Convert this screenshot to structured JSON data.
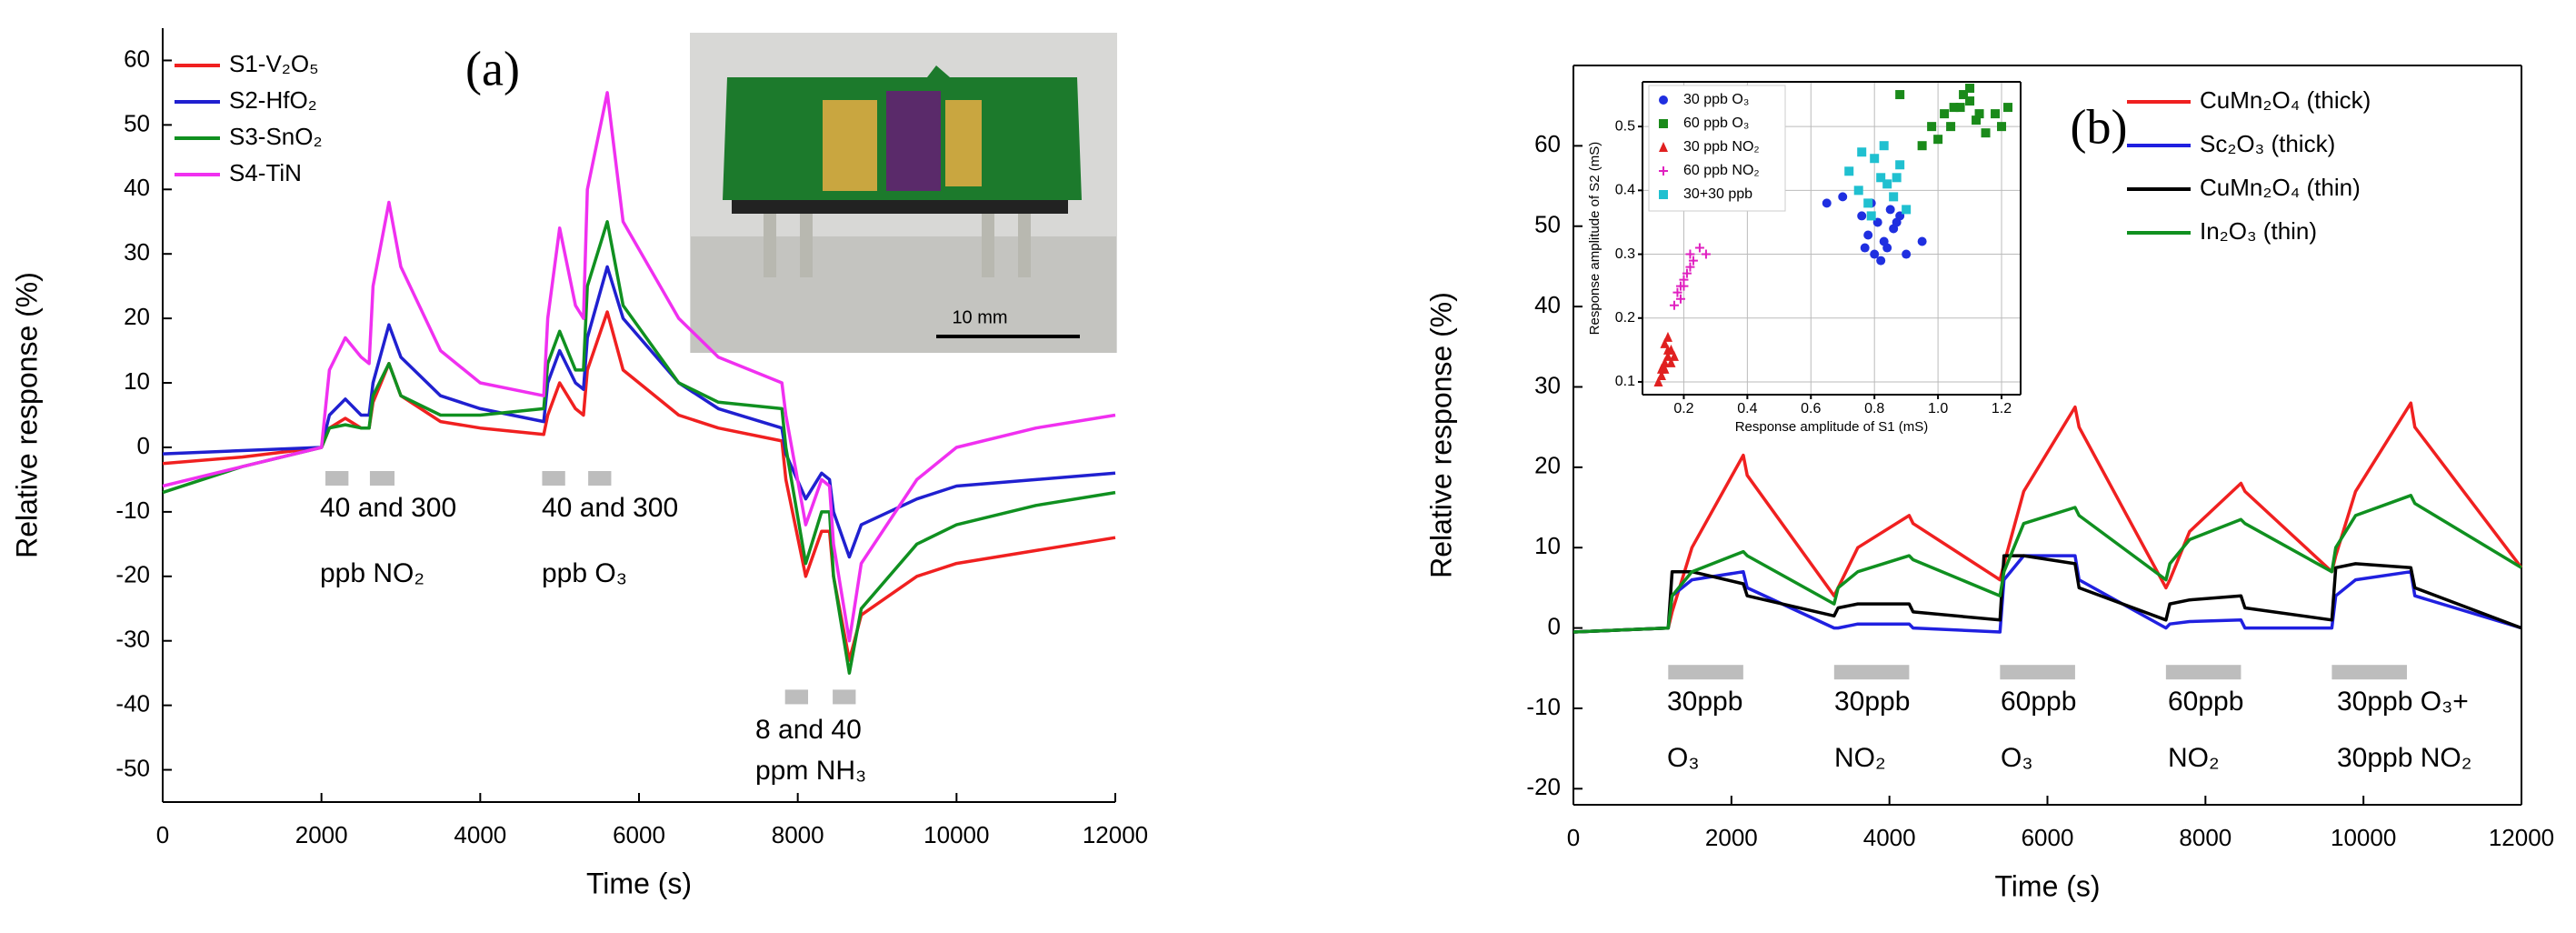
{
  "chart_data": [
    {
      "type": "line",
      "panel_label": "(a)",
      "x_label": "Time (s)",
      "y_label": "Relative response (%)",
      "xlim": [
        0,
        12000
      ],
      "xticks": [
        0,
        2000,
        4000,
        6000,
        8000,
        10000,
        12000
      ],
      "ylim": [
        -55,
        65
      ],
      "yticks": [
        -50,
        -40,
        -30,
        -20,
        -10,
        0,
        10,
        20,
        30,
        40,
        50,
        60
      ],
      "x": [
        0,
        1000,
        2000,
        2100,
        2300,
        2500,
        2600,
        2650,
        2850,
        3000,
        3500,
        4000,
        4800,
        4850,
        5000,
        5200,
        5300,
        5350,
        5600,
        5800,
        6500,
        7000,
        7800,
        7850,
        8100,
        8300,
        8400,
        8450,
        8650,
        8800,
        9500,
        10000,
        11000,
        12000
      ],
      "series": [
        {
          "name": "S1-V₂O₅",
          "color": "#f02020",
          "values": [
            -2.5,
            -1.5,
            0,
            3,
            4.5,
            3,
            3,
            7,
            13,
            8,
            4,
            3,
            2,
            5,
            10,
            6,
            5,
            12,
            21,
            12,
            5,
            3,
            1,
            -5,
            -20,
            -13,
            -13,
            -20,
            -33,
            -26,
            -20,
            -18,
            -16,
            -14
          ]
        },
        {
          "name": "S2-HfO₂",
          "color": "#2020d0",
          "values": [
            -1,
            -0.5,
            0,
            5,
            7.5,
            5,
            5,
            10,
            19,
            14,
            8,
            6,
            4,
            10,
            15,
            10,
            9,
            17,
            28,
            20,
            10,
            6,
            3,
            -1,
            -8,
            -4,
            -5,
            -10,
            -17,
            -12,
            -8,
            -6,
            -5,
            -4
          ]
        },
        {
          "name": "S3-SnO₂",
          "color": "#109020",
          "values": [
            -7,
            -3,
            0,
            3,
            3.5,
            3,
            3,
            8,
            13,
            8,
            5,
            5,
            6,
            13,
            18,
            12,
            12,
            25,
            35,
            22,
            10,
            7,
            6,
            0,
            -18,
            -10,
            -10,
            -20,
            -35,
            -25,
            -15,
            -12,
            -9,
            -7
          ]
        },
        {
          "name": "S4-TiN",
          "color": "#f030f0",
          "values": [
            -6,
            -3,
            0,
            12,
            17,
            14,
            13,
            25,
            38,
            28,
            15,
            10,
            8,
            20,
            34,
            22,
            20,
            40,
            55,
            35,
            20,
            14,
            10,
            5,
            -12,
            -5,
            -6,
            -15,
            -30,
            -18,
            -5,
            0,
            3,
            5
          ]
        }
      ],
      "exposures": [
        {
          "x0": 2050,
          "x1": 2340,
          "y": -4.8
        },
        {
          "x0": 2610,
          "x1": 2920,
          "y": -4.8
        },
        {
          "x0": 4780,
          "x1": 5070,
          "y": -4.8
        },
        {
          "x0": 5360,
          "x1": 5650,
          "y": -4.8
        },
        {
          "x0": 7840,
          "x1": 8130,
          "y": -38.7
        },
        {
          "x0": 8440,
          "x1": 8730,
          "y": -38.7
        }
      ],
      "annotations": [
        [
          "40 and 300",
          "ppb NO₂"
        ],
        [
          "40 and 300",
          "ppb O₃"
        ],
        [
          "8 and 40",
          "ppm NH₃"
        ]
      ]
    },
    {
      "type": "line",
      "panel_label": "(b)",
      "x_label": "Time (s)",
      "y_label": "Relative response (%)",
      "xlim": [
        0,
        12000
      ],
      "xticks": [
        0,
        2000,
        4000,
        6000,
        8000,
        10000,
        12000
      ],
      "ylim": [
        -22,
        70
      ],
      "yticks": [
        -20,
        -10,
        0,
        10,
        20,
        30,
        40,
        50,
        60
      ],
      "x": [
        0,
        1200,
        1250,
        1500,
        2150,
        2200,
        3300,
        3350,
        3600,
        4250,
        4300,
        5400,
        5450,
        5700,
        6350,
        6400,
        7500,
        7550,
        7800,
        8450,
        8500,
        9600,
        9650,
        9900,
        10600,
        10650,
        12000
      ],
      "series": [
        {
          "name": "CuMn₂O₄ (thick)",
          "color": "#f02020",
          "values": [
            -0.5,
            0,
            2,
            10,
            21.5,
            19,
            4,
            5,
            10,
            14,
            13,
            6,
            8,
            17,
            27.5,
            25,
            5,
            6,
            12,
            18,
            17,
            7,
            9,
            17,
            28,
            25,
            7.5
          ]
        },
        {
          "name": "Sc₂O₃ (thick)",
          "color": "#2020e0",
          "values": [
            -0.5,
            0,
            4,
            6,
            7,
            5,
            0,
            0,
            0.5,
            0.5,
            0,
            -0.5,
            6,
            9,
            9,
            6,
            0,
            0.5,
            0.8,
            1,
            0,
            0,
            4,
            6,
            7,
            4,
            0
          ]
        },
        {
          "name": "CuMn₂O₄ (thin)",
          "color": "#000000",
          "values": [
            -0.5,
            0,
            7,
            7,
            5.5,
            4,
            1.5,
            2.5,
            3,
            3,
            2,
            1,
            9,
            9,
            8,
            5,
            1,
            3,
            3.5,
            4,
            2.5,
            1,
            7.5,
            8,
            7.5,
            5,
            0
          ]
        },
        {
          "name": "In₂O₃ (thin)",
          "color": "#109020",
          "values": [
            -0.5,
            0,
            4,
            7,
            9.5,
            9,
            3,
            5,
            7,
            9,
            8.5,
            4,
            7,
            13,
            15,
            14,
            6,
            8,
            11,
            13.5,
            13,
            7,
            10,
            14,
            16.5,
            15.5,
            7.5
          ]
        }
      ],
      "exposures": [
        {
          "x0": 1200,
          "x1": 2150,
          "y": -5.5
        },
        {
          "x0": 3300,
          "x1": 4250,
          "y": -5.5
        },
        {
          "x0": 5400,
          "x1": 6350,
          "y": -5.5
        },
        {
          "x0": 7500,
          "x1": 8450,
          "y": -5.5
        },
        {
          "x0": 9600,
          "x1": 10550,
          "y": -5.5
        }
      ],
      "annotations": [
        [
          "30ppb",
          "O₃"
        ],
        [
          "30ppb",
          "NO₂"
        ],
        [
          "60ppb",
          "O₃"
        ],
        [
          "60ppb",
          "NO₂"
        ],
        [
          "30ppb O₃+",
          "30ppb NO₂"
        ]
      ]
    },
    {
      "type": "scatter",
      "x_label": "Response amplitude of S1 (mS)",
      "y_label": "Response amplitude of S2 (mS)",
      "grid": true,
      "xlim": [
        0.07,
        1.26
      ],
      "xticks": [
        0.2,
        0.4,
        0.6,
        0.8,
        {
          "value": 1,
          "label": "1.0"
        },
        1.2
      ],
      "ylim": [
        0.08,
        0.57
      ],
      "yticks": [
        0.1,
        0.2,
        0.3,
        0.4,
        0.5
      ],
      "series": [
        {
          "name": "30 ppb O₃",
          "color": "#1f2fe0",
          "marker": "circle",
          "x": [
            0.76,
            0.78,
            0.8,
            0.82,
            0.84,
            0.86,
            0.88,
            0.79,
            0.81,
            0.83,
            0.85,
            0.9,
            0.77,
            0.87,
            0.65,
            0.7,
            0.95
          ],
          "values": [
            0.36,
            0.33,
            0.3,
            0.29,
            0.31,
            0.34,
            0.36,
            0.38,
            0.35,
            0.32,
            0.37,
            0.3,
            0.31,
            0.35,
            0.38,
            0.39,
            0.32
          ]
        },
        {
          "name": "60 ppb O₃",
          "color": "#1a8a1a",
          "marker": "square",
          "x": [
            0.98,
            1.02,
            1.05,
            1.08,
            1.1,
            1.12,
            1.15,
            1.18,
            1.04,
            1.07,
            1.1,
            1.13,
            1.2,
            1.22,
            0.95,
            1.0,
            0.88
          ],
          "values": [
            0.5,
            0.52,
            0.53,
            0.55,
            0.54,
            0.51,
            0.49,
            0.52,
            0.5,
            0.53,
            0.56,
            0.52,
            0.5,
            0.53,
            0.47,
            0.48,
            0.55
          ]
        },
        {
          "name": "30 ppb NO₂",
          "color": "#e02020",
          "marker": "triangle",
          "x": [
            0.12,
            0.13,
            0.14,
            0.15,
            0.16,
            0.15,
            0.14,
            0.13,
            0.16,
            0.17,
            0.15,
            0.14
          ],
          "values": [
            0.1,
            0.11,
            0.13,
            0.14,
            0.15,
            0.17,
            0.12,
            0.12,
            0.13,
            0.14,
            0.15,
            0.16
          ]
        },
        {
          "name": "60 ppb NO₂",
          "color": "#e020c0",
          "marker": "plus",
          "x": [
            0.17,
            0.18,
            0.19,
            0.2,
            0.21,
            0.22,
            0.23,
            0.25,
            0.19,
            0.2,
            0.22,
            0.27
          ],
          "values": [
            0.22,
            0.24,
            0.25,
            0.26,
            0.27,
            0.28,
            0.29,
            0.31,
            0.23,
            0.25,
            0.3,
            0.3
          ]
        },
        {
          "name": "30+30 ppb",
          "color": "#20c0d0",
          "marker": "square",
          "x": [
            0.72,
            0.75,
            0.78,
            0.8,
            0.82,
            0.84,
            0.86,
            0.88,
            0.79,
            0.83,
            0.87,
            0.76,
            0.9
          ],
          "values": [
            0.43,
            0.4,
            0.38,
            0.45,
            0.42,
            0.41,
            0.39,
            0.44,
            0.36,
            0.47,
            0.42,
            0.46,
            0.37
          ]
        }
      ]
    }
  ],
  "photo": {
    "scale_label": "10 mm"
  }
}
